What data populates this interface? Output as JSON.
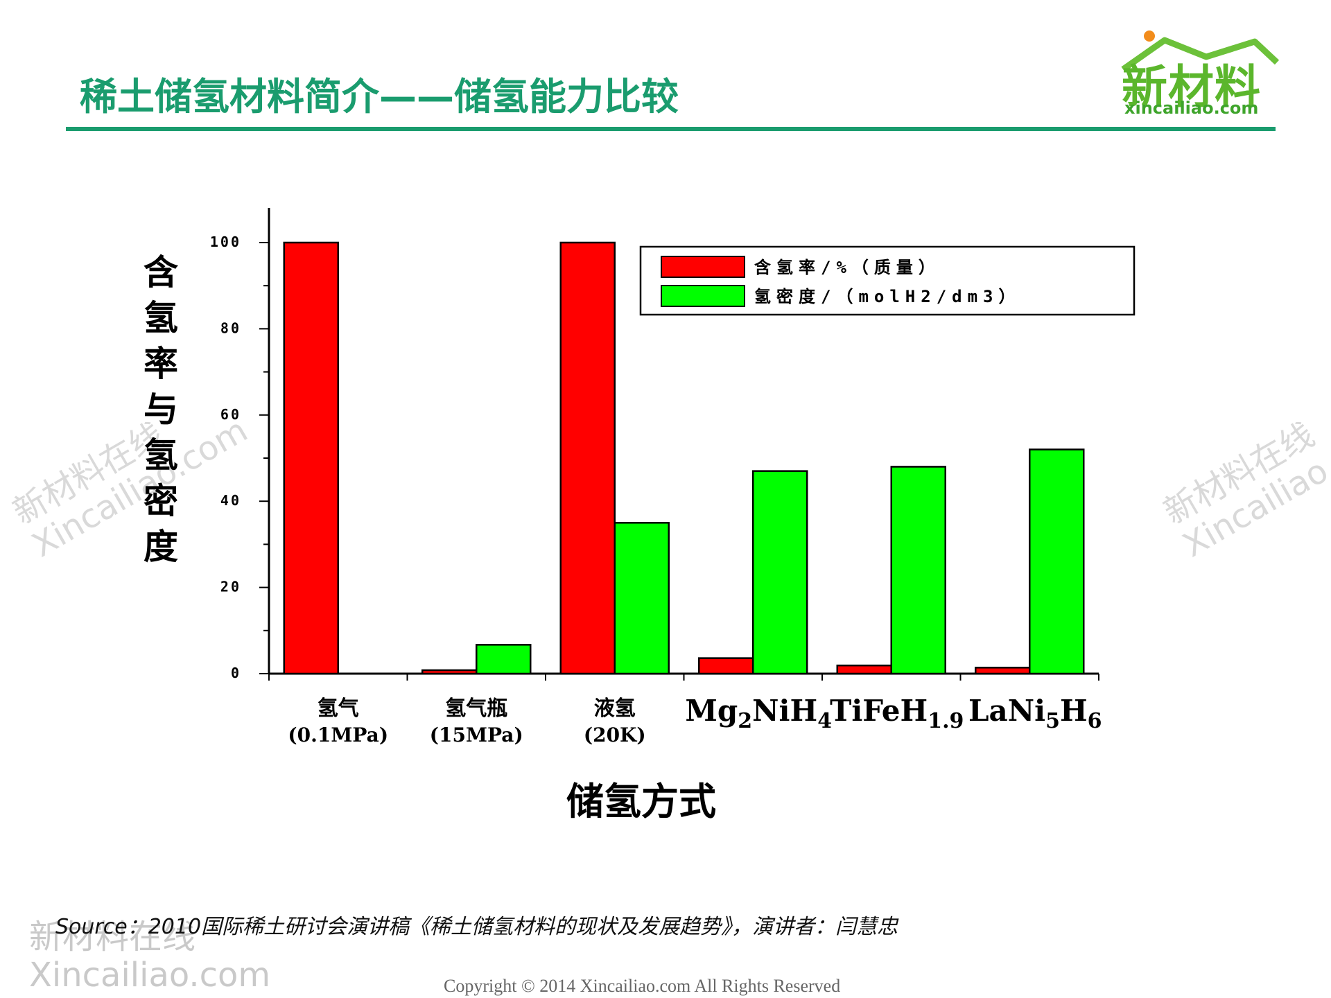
{
  "slide": {
    "title": "稀土储氢材料简介——储氢能力比较",
    "logo_main": "新材料",
    "logo_sub": "xincailiao.com",
    "source": "Source：2010国际稀土研讨会演讲稿《稀土储氢材料的现状及发展趋势》，演讲者：闫慧忠",
    "copyright": "Copyright © 2014   Xincailiao.com   All Rights Reserved",
    "watermark_line1": "新材料在线",
    "watermark_line2": "Xincailiao.com",
    "colors": {
      "title": "#1a9c6e",
      "logo": "#5bb62c"
    }
  },
  "chart_data": {
    "type": "bar",
    "categories": [
      {
        "line1": "氢气",
        "line2": "(0.1MPa)"
      },
      {
        "line1": "氢气瓶",
        "line2": "(15MPa)"
      },
      {
        "line1": "液氢",
        "line2": "(20K)"
      },
      {
        "base": "Mg",
        "sub": "2",
        "mid": "NiH",
        "sub2": "4"
      },
      {
        "base": "TiFeH",
        "sub": "1.9",
        "mid": "",
        "sub2": ""
      },
      {
        "base": "LaNi",
        "sub": "5",
        "mid": "H",
        "sub2": "6"
      }
    ],
    "series": [
      {
        "name": "含氢率/%（质量）",
        "color": "#ff0000",
        "values": [
          100,
          0.8,
          100,
          3.6,
          1.9,
          1.4
        ]
      },
      {
        "name": "氢密度/（molH2/dm3）",
        "color": "#00ff00",
        "values": [
          0,
          6.7,
          35,
          47,
          48,
          52
        ]
      }
    ],
    "ylabel": "含氢率与氢密度",
    "xlabel": "储氢方式",
    "ylim": [
      0,
      100
    ],
    "yticks": [
      0,
      20,
      40,
      60,
      80,
      100
    ],
    "legend": "top-right"
  }
}
